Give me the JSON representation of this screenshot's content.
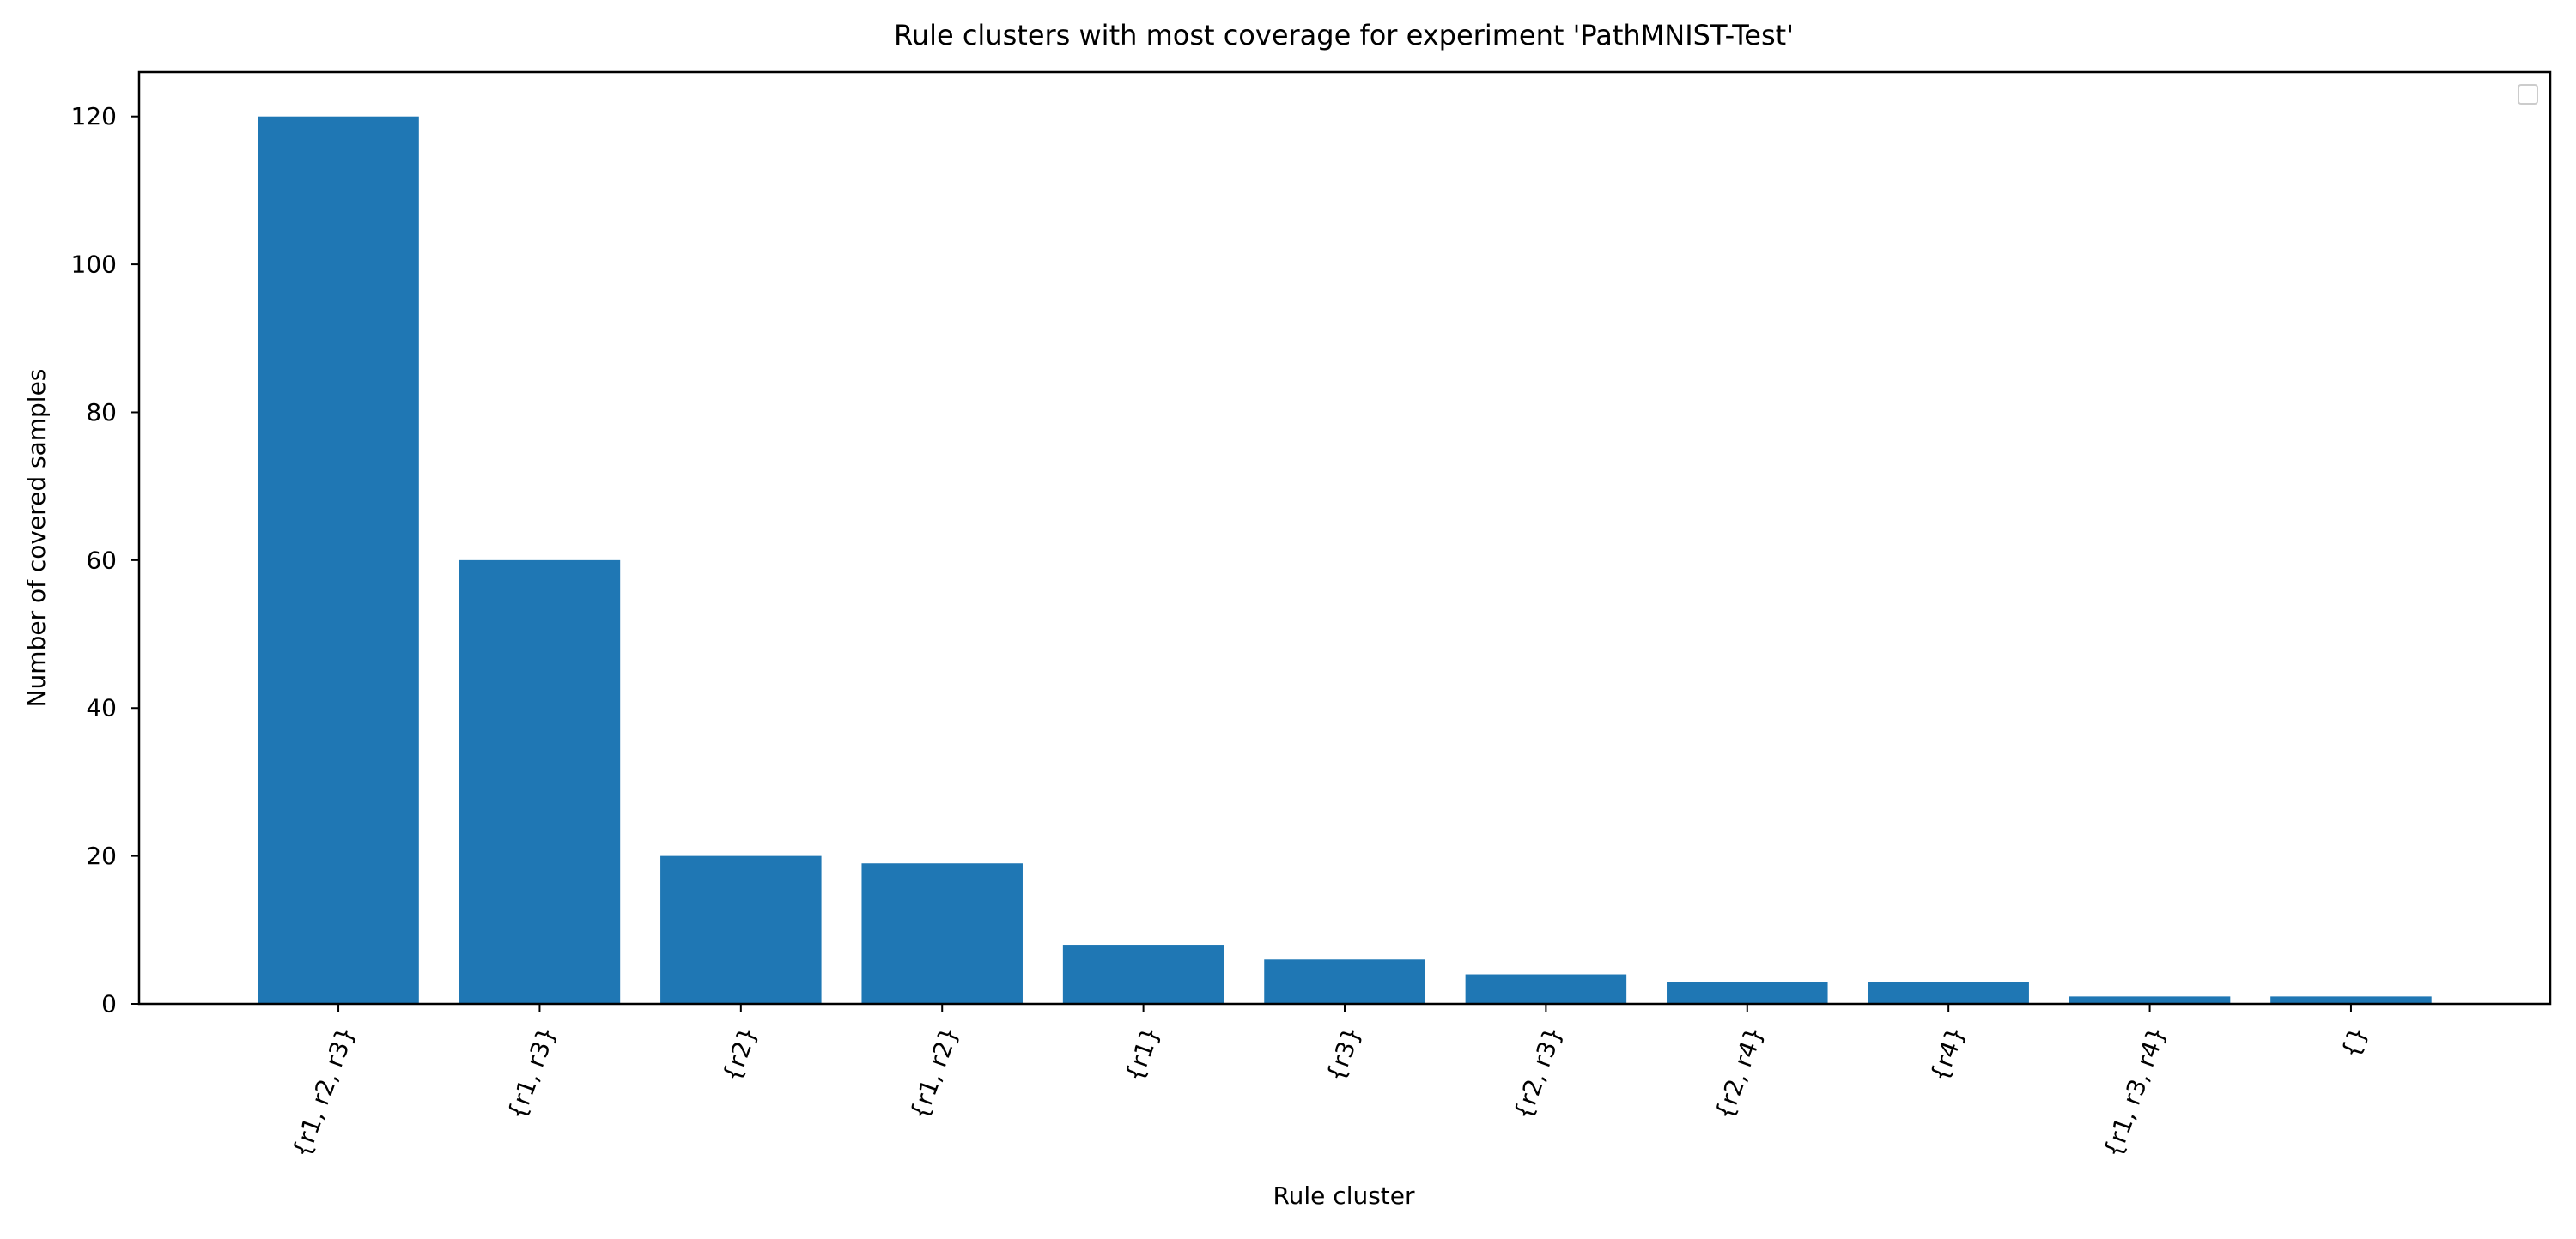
{
  "chart_data": {
    "type": "bar",
    "title": "Rule clusters with most coverage for experiment 'PathMNIST-Test'",
    "xlabel": "Rule cluster",
    "ylabel": "Number of covered samples",
    "categories": [
      "{r1, r2, r3}",
      "{r1, r3}",
      "{r2}",
      "{r1, r2}",
      "{r1}",
      "{r3}",
      "{r2, r3}",
      "{r2, r4}",
      "{r4}",
      "{r1, r3, r4}",
      "{}"
    ],
    "values": [
      120,
      60,
      20,
      19,
      8,
      6,
      4,
      3,
      3,
      1,
      1
    ],
    "ylim": [
      0,
      126
    ],
    "yticks": [
      0,
      20,
      40,
      60,
      80,
      100,
      120
    ],
    "grid": false,
    "legend": "top-right",
    "bar_color": "#1f77b4"
  }
}
